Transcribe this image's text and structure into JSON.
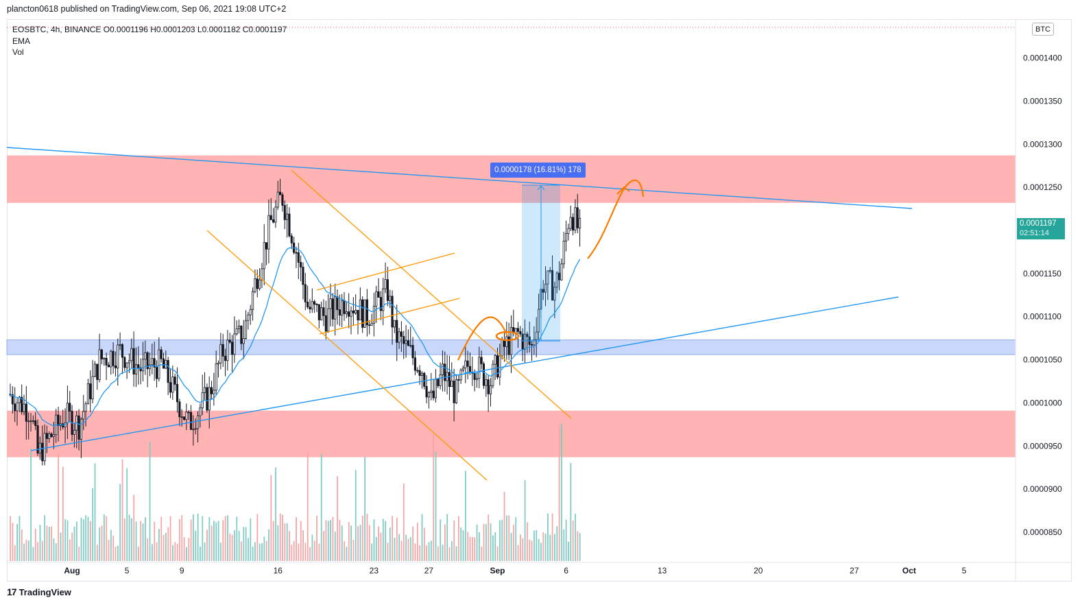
{
  "header": {
    "published_by": "plancton0618 published on TradingView.com, Sep 06, 2021 19:08 UTC+2"
  },
  "legend": {
    "symbol_line": "EOSBTC, 4h, BINANCE  O0.0001196  H0.0001203  L0.0001182  C0.0001197",
    "indicator_1": "EMA",
    "indicator_2": "Vol"
  },
  "price_axis": {
    "currency": "BTC",
    "current_price": "0.0001197",
    "countdown": "02:51:14"
  },
  "measure_tool": {
    "label": "0.0000178 (16.81%) 178"
  },
  "footer": {
    "brand": "TradingView",
    "logo": "17"
  },
  "colors": {
    "up": "#26a69a",
    "down": "#ef5350",
    "ema": "#2196f3",
    "resistance_zone": "#ffb3b3",
    "support_zone": "#c9d8fa",
    "pattern_lines": "#ff9800",
    "trend_lines": "#2196f3"
  },
  "chart_data": {
    "type": "candlestick",
    "symbol": "EOSBTC",
    "interval": "4h",
    "exchange": "BINANCE",
    "ylim": [
      8.15e-05,
      0.0001445
    ],
    "y_ticks": [
      "0.0001400",
      "0.0001350",
      "0.0001300",
      "0.0001250",
      "0.0001200",
      "0.0001150",
      "0.0001100",
      "0.0001050",
      "0.0001000",
      "0.0000950",
      "0.0000900",
      "0.0000850"
    ],
    "x_ticks": [
      "Aug",
      "5",
      "9",
      "16",
      "23",
      "27",
      "Sep",
      "6",
      "13",
      "20",
      "27",
      "Oct",
      "5"
    ],
    "x_tick_days": [
      1,
      5,
      9,
      16,
      23,
      27,
      32,
      37,
      44,
      51,
      58,
      62,
      66
    ],
    "x_range_days": [
      -3.75,
      69.75
    ],
    "last_candle": {
      "open": 0.0001196,
      "high": 0.0001203,
      "low": 0.0001182,
      "close": 0.0001197
    },
    "anchors": [
      {
        "day": -3.5,
        "price": 0.000101
      },
      {
        "day": -2.0,
        "price": 9.9e-05
      },
      {
        "day": -1.5,
        "price": 9.4e-05
      },
      {
        "day": 0.5,
        "price": 9.85e-05
      },
      {
        "day": 1.5,
        "price": 9.75e-05
      },
      {
        "day": 3.0,
        "price": 0.000105
      },
      {
        "day": 4.5,
        "price": 0.000106
      },
      {
        "day": 6.0,
        "price": 0.000104
      },
      {
        "day": 7.5,
        "price": 0.0001045
      },
      {
        "day": 9.5,
        "price": 9.75e-05
      },
      {
        "day": 11.0,
        "price": 0.000101
      },
      {
        "day": 12.0,
        "price": 0.000106
      },
      {
        "day": 13.5,
        "price": 0.000108
      },
      {
        "day": 14.5,
        "price": 0.000115
      },
      {
        "day": 15.5,
        "price": 0.000121
      },
      {
        "day": 16.3,
        "price": 0.000124
      },
      {
        "day": 17.3,
        "price": 0.000118
      },
      {
        "day": 18.2,
        "price": 0.000111
      },
      {
        "day": 19.5,
        "price": 0.00011
      },
      {
        "day": 21.0,
        "price": 0.000112
      },
      {
        "day": 22.5,
        "price": 0.00011
      },
      {
        "day": 24.0,
        "price": 0.000113
      },
      {
        "day": 24.5,
        "price": 0.000108
      },
      {
        "day": 25.5,
        "price": 0.000106
      },
      {
        "day": 26.5,
        "price": 0.000104
      },
      {
        "day": 27.2,
        "price": 0.0001
      },
      {
        "day": 28.0,
        "price": 0.0001035
      },
      {
        "day": 29.0,
        "price": 0.000101
      },
      {
        "day": 30.0,
        "price": 0.000105
      },
      {
        "day": 31.5,
        "price": 0.0001025
      },
      {
        "day": 32.5,
        "price": 0.0001065
      },
      {
        "day": 33.5,
        "price": 0.000108
      },
      {
        "day": 34.5,
        "price": 0.0001065
      },
      {
        "day": 35.3,
        "price": 0.000114
      },
      {
        "day": 36.2,
        "price": 0.0001135
      },
      {
        "day": 36.6,
        "price": 0.0001155
      },
      {
        "day": 37.3,
        "price": 0.0001225
      },
      {
        "day": 38.0,
        "price": 0.0001197
      }
    ],
    "zones": [
      {
        "name": "resistance",
        "from": 0.0001232,
        "to": 0.0001287
      },
      {
        "name": "support",
        "from": 0.0001056,
        "to": 0.0001073
      },
      {
        "name": "demand",
        "from": 9.37e-05,
        "to": 9.91e-05
      }
    ]
  }
}
